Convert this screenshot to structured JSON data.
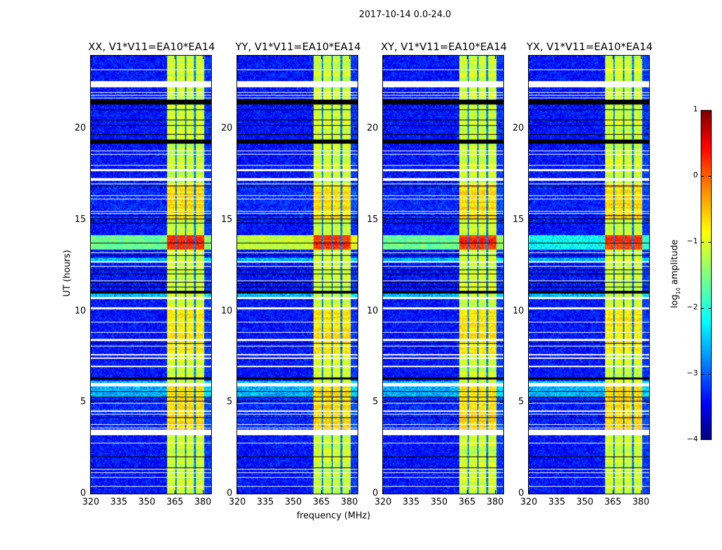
{
  "suptitle": "2017-10-14 0.0-24.0",
  "ylabel": "UT (hours)",
  "xlabel": "frequency (MHz)",
  "colorbar": {
    "label_prefix": "log",
    "label_sub": "10",
    "label_suffix": " amplitude",
    "range": [
      -4,
      1
    ],
    "ticks": [
      "1",
      "0",
      "−1",
      "−2",
      "−3",
      "−4"
    ],
    "tick_values": [
      1,
      0,
      -1,
      -2,
      -3,
      -4
    ],
    "colormap": "jet"
  },
  "chart_data": {
    "type": "heatmap",
    "xlim": [
      320,
      384.4
    ],
    "ylim": [
      0,
      24
    ],
    "xticks": [
      320,
      335,
      350,
      365,
      380
    ],
    "xtick_labels": [
      "320",
      "335",
      "350",
      "365",
      "380"
    ],
    "yticks": [
      0,
      5,
      10,
      15,
      20
    ],
    "ytick_labels": [
      "0",
      "5",
      "10",
      "15",
      "20"
    ],
    "zlim": [
      -4,
      1
    ],
    "background_level": -3.3,
    "band": {
      "start_mhz": 360.8,
      "end_mhz": 380.4,
      "gaps_mhz": [
        365.5,
        370.5,
        375.6
      ],
      "level": -1.1
    },
    "bright_intervals": [
      {
        "start_h": 13.4,
        "end_h": 14.2,
        "band_level": 0.1,
        "broadband_level": -1.6
      },
      {
        "start_h": 15.0,
        "end_h": 17.0,
        "band_level": -0.7,
        "broadband_level": -3.2
      },
      {
        "start_h": 7.6,
        "end_h": 10.2,
        "band_level": -0.8,
        "broadband_level": -3.3
      },
      {
        "start_h": 3.5,
        "end_h": 5.9,
        "band_level": -0.7,
        "broadband_level": -3.2
      }
    ],
    "elevated_broadband_intervals": [
      [
        10.78,
        11.0
      ],
      [
        12.77,
        12.95
      ],
      [
        5.3,
        5.9
      ],
      [
        6.08,
        6.2
      ]
    ],
    "flagged_white_h": [
      [
        23.22,
        23.28
      ],
      [
        22.3,
        22.62
      ],
      [
        21.98,
        22.02
      ],
      [
        21.83,
        21.87
      ],
      [
        21.68,
        21.72
      ],
      [
        18.78,
        18.82
      ],
      [
        18.58,
        18.62
      ],
      [
        17.98,
        18.02
      ],
      [
        17.68,
        17.79
      ],
      [
        17.17,
        17.3
      ],
      [
        16.98,
        17.02
      ],
      [
        16.32,
        16.36
      ],
      [
        16.13,
        16.17
      ],
      [
        15.45,
        15.49
      ],
      [
        15.34,
        15.38
      ],
      [
        13.2,
        13.24
      ],
      [
        12.67,
        12.77
      ],
      [
        12.45,
        12.49
      ],
      [
        11.66,
        11.7
      ],
      [
        10.67,
        10.78
      ],
      [
        10.12,
        10.22
      ],
      [
        9.41,
        9.45
      ],
      [
        8.84,
        8.88
      ],
      [
        8.39,
        8.51
      ],
      [
        8.09,
        8.13
      ],
      [
        7.6,
        7.66
      ],
      [
        7.42,
        7.46
      ],
      [
        6.97,
        7.01
      ],
      [
        5.9,
        6.08
      ],
      [
        4.94,
        4.98
      ],
      [
        4.52,
        4.56
      ],
      [
        4.34,
        4.38
      ],
      [
        3.78,
        3.82
      ],
      [
        3.58,
        3.62
      ],
      [
        3.23,
        3.52
      ],
      [
        2.76,
        2.8
      ],
      [
        1.33,
        1.37
      ],
      [
        1.14,
        1.18
      ],
      [
        0.88,
        0.92
      ],
      [
        0.39,
        0.43
      ]
    ],
    "flagged_black_h": [
      [
        21.33,
        21.6
      ],
      [
        21.05,
        21.09
      ],
      [
        20.48,
        20.52
      ],
      [
        20.18,
        20.22
      ],
      [
        19.68,
        19.72
      ],
      [
        19.2,
        19.42
      ],
      [
        16.85,
        16.89
      ],
      [
        15.23,
        15.27
      ],
      [
        15.04,
        15.08
      ],
      [
        14.82,
        14.86
      ],
      [
        13.73,
        13.77
      ],
      [
        13.05,
        13.09
      ],
      [
        12.26,
        12.3
      ],
      [
        12.03,
        12.07
      ],
      [
        11.58,
        11.62
      ],
      [
        11.32,
        11.36
      ],
      [
        11.0,
        11.12
      ],
      [
        8.24,
        8.28
      ],
      [
        6.27,
        6.38
      ],
      [
        5.61,
        5.65
      ],
      [
        5.28,
        5.32
      ],
      [
        5.08,
        5.12
      ],
      [
        4.15,
        4.19
      ],
      [
        2.01,
        2.05
      ],
      [
        1.41,
        1.45
      ]
    ],
    "series": [
      {
        "name": "XX, V1*V11=EA10*EA14",
        "broadband_scale": 1.0,
        "seed": 11
      },
      {
        "name": "YY, V1*V11=EA10*EA14",
        "broadband_scale": 1.25,
        "seed": 23
      },
      {
        "name": "XY, V1*V11=EA10*EA14",
        "broadband_scale": 1.0,
        "seed": 37
      },
      {
        "name": "YX, V1*V11=EA10*EA14",
        "broadband_scale": 0.7,
        "seed": 51
      }
    ]
  }
}
